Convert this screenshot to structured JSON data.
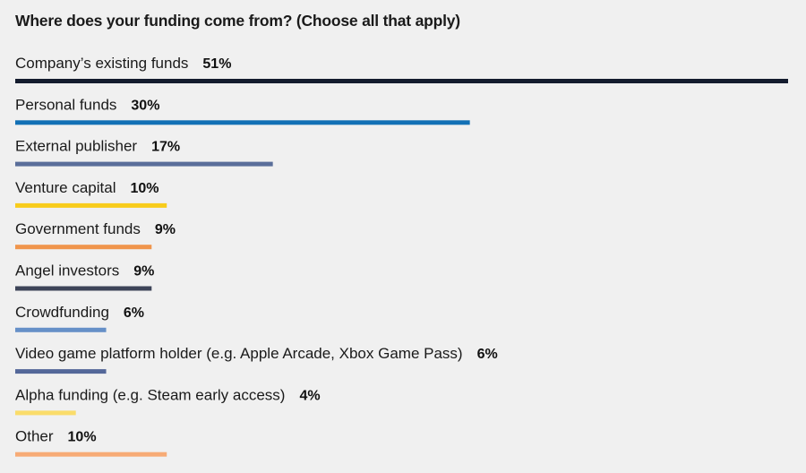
{
  "chart_data": {
    "type": "bar",
    "orientation": "horizontal",
    "title": "Where does your funding come from? (Choose all that apply)",
    "categories": [
      "Company’s existing funds",
      "Personal funds",
      "External publisher",
      "Venture capital",
      "Government funds",
      "Angel investors",
      "Crowdfunding",
      "Video game platform holder (e.g. Apple Arcade, Xbox Game Pass)",
      "Alpha funding (e.g. Steam early access)",
      "Other"
    ],
    "values": [
      51,
      30,
      17,
      10,
      9,
      9,
      6,
      6,
      4,
      10
    ],
    "value_labels": [
      "51%",
      "30%",
      "17%",
      "10%",
      "9%",
      "9%",
      "6%",
      "6%",
      "4%",
      "10%"
    ],
    "colors": [
      "#141c2e",
      "#1270b5",
      "#5a6e9a",
      "#f8cc1b",
      "#f0954c",
      "#3d4458",
      "#6690c8",
      "#546899",
      "#fadc6a",
      "#f7ab76"
    ],
    "xlim": [
      0,
      51
    ],
    "grid": false,
    "legend": "none"
  }
}
